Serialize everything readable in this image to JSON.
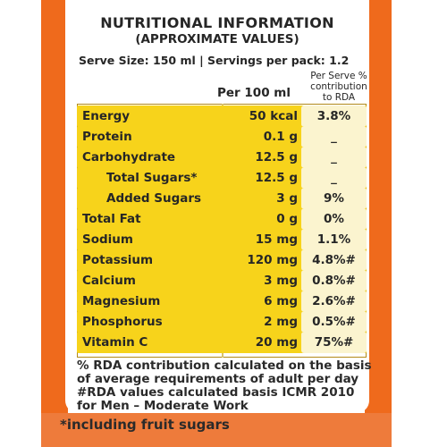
{
  "label": {
    "title": "NUTRITIONAL INFORMATION",
    "subtitle": "(APPROXIMATE VALUES)",
    "serve_line": "Serve Size: 150 ml | Servings per pack: 1.2",
    "col_per100": "Per 100 ml",
    "col_rda": "Per Serve % contribution to RDA",
    "rows": [
      {
        "name": "Energy",
        "value": "50 kcal",
        "rda": "3.8%"
      },
      {
        "name": "Protein",
        "value": "0.1 g",
        "rda": "_"
      },
      {
        "name": "Carbohydrate",
        "value": "12.5 g",
        "rda": "_"
      },
      {
        "name": "Total Sugars*",
        "value": "12.5 g",
        "rda": "_"
      },
      {
        "name": "Added Sugars",
        "value": "3 g",
        "rda": "9%"
      },
      {
        "name": "Total Fat",
        "value": "0 g",
        "rda": "0%"
      },
      {
        "name": "Sodium",
        "value": "15 mg",
        "rda": "1.1%"
      },
      {
        "name": "Potassium",
        "value": "120 mg",
        "rda": "4.8%#"
      },
      {
        "name": "Calcium",
        "value": "3 mg",
        "rda": "0.8%#"
      },
      {
        "name": "Magnesium",
        "value": "6 mg",
        "rda": "2.6%#"
      },
      {
        "name": "Phosphorus",
        "value": "2 mg",
        "rda": "0.5%#"
      },
      {
        "name": "Vitamin C",
        "value": "20 mg",
        "rda": "75%#"
      }
    ],
    "note_1": "% RDA contribution calculated on the basis of average requirements of adult per day",
    "note_2": "#RDA values calculated basis ICMR 2010 for Men – Moderate Work",
    "footnote": "*including fruit sugars"
  },
  "colors": {
    "packaging_orange": "#ef6a1c",
    "row_yellow": "#f7d31b",
    "rda_cell": "#fbf4cf"
  }
}
